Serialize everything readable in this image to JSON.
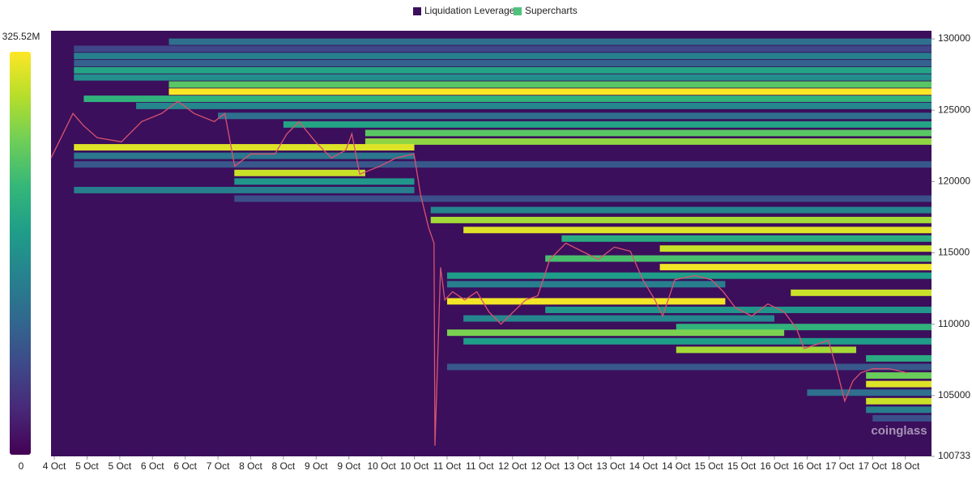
{
  "chart_data": {
    "type": "heatmap",
    "series": [
      {
        "name": "Liquidation Leverage",
        "color": "#3b0f5c",
        "prices": [
          129800,
          129300,
          128800,
          128300,
          127800,
          127300,
          126800,
          126300,
          125800,
          125300,
          124600,
          124000,
          123400,
          122800,
          122400,
          121800,
          121200,
          120600,
          120000,
          119400,
          118800,
          118000,
          117300,
          116600,
          116000,
          115300,
          114600,
          114000,
          113400,
          112800,
          112200,
          111600,
          111000,
          110400,
          109800,
          109400,
          108800,
          108200,
          107600,
          107000,
          106400,
          105800,
          105200,
          104600,
          104000,
          103400
        ],
        "starts": [
          3.5,
          0.6,
          0.6,
          0.6,
          0.6,
          0.6,
          3.5,
          3.5,
          0.9,
          2.5,
          5.0,
          7.0,
          9.5,
          9.5,
          0.6,
          0.6,
          0.6,
          5.5,
          5.5,
          0.6,
          5.5,
          11.5,
          11.5,
          12.5,
          15.5,
          18.5,
          15.0,
          18.5,
          12.0,
          12.0,
          22.5,
          12.0,
          15.0,
          12.5,
          19.0,
          12.0,
          12.5,
          19.0,
          24.8,
          12.0,
          24.8,
          24.8,
          23.0,
          24.8,
          24.8,
          25.0
        ],
        "ends": [
          26.8,
          26.8,
          26.8,
          26.8,
          26.8,
          26.8,
          26.8,
          26.8,
          26.8,
          26.8,
          26.8,
          26.8,
          26.8,
          26.8,
          11.0,
          11.0,
          26.8,
          9.5,
          11.0,
          11.0,
          26.8,
          26.8,
          26.8,
          26.8,
          26.8,
          26.8,
          26.8,
          26.8,
          26.8,
          20.5,
          26.8,
          20.5,
          26.8,
          22.0,
          26.8,
          22.3,
          26.8,
          24.5,
          26.8,
          26.8,
          26.8,
          26.8,
          26.8,
          26.8,
          26.8,
          26.8
        ],
        "values": [
          120000000,
          70000000,
          140000000,
          100000000,
          190000000,
          160000000,
          240000000,
          325000000,
          210000000,
          150000000,
          120000000,
          190000000,
          240000000,
          270000000,
          310000000,
          130000000,
          90000000,
          300000000,
          170000000,
          140000000,
          80000000,
          150000000,
          280000000,
          310000000,
          200000000,
          300000000,
          230000000,
          320000000,
          180000000,
          140000000,
          300000000,
          320000000,
          170000000,
          150000000,
          210000000,
          260000000,
          180000000,
          280000000,
          200000000,
          90000000,
          250000000,
          310000000,
          120000000,
          300000000,
          140000000,
          80000000
        ]
      },
      {
        "name": "Supercharts",
        "color": "#4fc37c",
        "line_color": "#d9536f",
        "x": [
          -0.1,
          0.57,
          0.89,
          1.31,
          2.05,
          2.67,
          3.28,
          3.78,
          4.27,
          4.89,
          5.21,
          5.51,
          6.0,
          6.74,
          7.11,
          7.48,
          7.98,
          8.47,
          8.91,
          9.09,
          9.33,
          9.95,
          10.44,
          10.99,
          11.19,
          11.43,
          11.6,
          11.63,
          11.8,
          11.93,
          12.17,
          12.54,
          12.91,
          13.28,
          13.65,
          14.02,
          14.4,
          14.77,
          15.14,
          15.63,
          16.12,
          16.62,
          17.11,
          17.6,
          17.98,
          18.35,
          18.59,
          18.96,
          19.58,
          20.07,
          20.44,
          20.81,
          21.31,
          21.8,
          22.3,
          22.67,
          22.91,
          23.28,
          23.65,
          23.9,
          24.15,
          24.4,
          24.64,
          25.01,
          25.51,
          26.05
        ],
        "values": [
          121650,
          124770,
          123920,
          123070,
          122780,
          124200,
          124770,
          125620,
          124770,
          124200,
          124770,
          121080,
          121930,
          121930,
          123350,
          124200,
          122780,
          121650,
          122220,
          123350,
          120510,
          121080,
          121650,
          121930,
          119090,
          116820,
          115680,
          101480,
          113980,
          111700,
          112270,
          111700,
          112270,
          110850,
          110000,
          110850,
          111700,
          111990,
          114540,
          115680,
          115110,
          114540,
          115400,
          115110,
          113120,
          111700,
          110570,
          113120,
          113410,
          113120,
          112270,
          111140,
          110570,
          111420,
          110850,
          109720,
          108290,
          108580,
          108860,
          106870,
          104600,
          106020,
          106590,
          106870,
          106870,
          106590
        ]
      }
    ],
    "xlim": [
      -0.1,
      26.8
    ],
    "xticks": [
      {
        "value": 0,
        "label": "4 Oct"
      },
      {
        "value": 1,
        "label": "5 Oct"
      },
      {
        "value": 2,
        "label": "5 Oct"
      },
      {
        "value": 3,
        "label": "6 Oct"
      },
      {
        "value": 4,
        "label": "6 Oct"
      },
      {
        "value": 5,
        "label": "7 Oct"
      },
      {
        "value": 6,
        "label": "8 Oct"
      },
      {
        "value": 7,
        "label": "8 Oct"
      },
      {
        "value": 8,
        "label": "9 Oct"
      },
      {
        "value": 9,
        "label": "9 Oct"
      },
      {
        "value": 10,
        "label": "10 Oct"
      },
      {
        "value": 11,
        "label": "10 Oct"
      },
      {
        "value": 12,
        "label": "11 Oct"
      },
      {
        "value": 13,
        "label": "11 Oct"
      },
      {
        "value": 14,
        "label": "12 Oct"
      },
      {
        "value": 15,
        "label": "12 Oct"
      },
      {
        "value": 16,
        "label": "13 Oct"
      },
      {
        "value": 17,
        "label": "13 Oct"
      },
      {
        "value": 18,
        "label": "14 Oct"
      },
      {
        "value": 19,
        "label": "14 Oct"
      },
      {
        "value": 20,
        "label": "15 Oct"
      },
      {
        "value": 21,
        "label": "15 Oct"
      },
      {
        "value": 22,
        "label": "16 Oct"
      },
      {
        "value": 23,
        "label": "16 Oct"
      },
      {
        "value": 24,
        "label": "17 Oct"
      },
      {
        "value": 25,
        "label": "17 Oct"
      },
      {
        "value": 26,
        "label": "18 Oct"
      }
    ],
    "ylim": [
      100733,
      130570
    ],
    "yticks": [
      130000,
      125000,
      120000,
      115000,
      110000,
      105000,
      100733
    ],
    "zlim": [
      0,
      325520000
    ],
    "zticks": [
      0,
      {
        "value": 325520000,
        "label": "325.52M"
      }
    ],
    "watermark": "coinglass"
  }
}
